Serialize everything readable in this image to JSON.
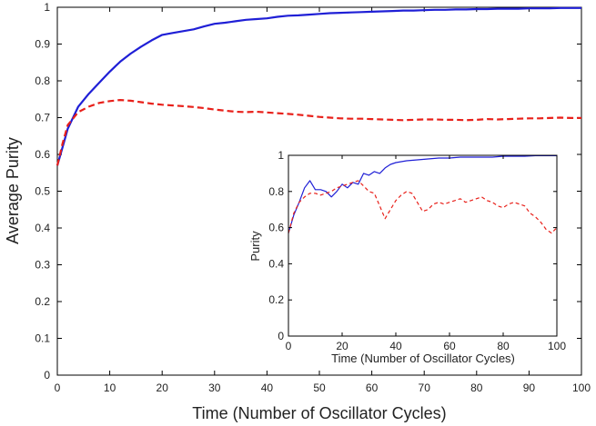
{
  "chart_data": [
    {
      "type": "line",
      "role": "main",
      "title": "",
      "xlabel": "Time (Number of Oscillator Cycles)",
      "ylabel": "Average Purity",
      "xlim": [
        0,
        100
      ],
      "ylim": [
        0,
        1
      ],
      "xticks": [
        0,
        10,
        20,
        30,
        40,
        50,
        60,
        70,
        80,
        90,
        100
      ],
      "yticks": [
        0,
        0.1,
        0.2,
        0.3,
        0.4,
        0.5,
        0.6,
        0.7,
        0.8,
        0.9,
        1
      ],
      "grid": false,
      "legend": "none",
      "series": [
        {
          "name": "solid blue",
          "color": "#1f1fd6",
          "style": "solid",
          "x": [
            0,
            1,
            2,
            4,
            6,
            8,
            10,
            12,
            14,
            16,
            18,
            20,
            22,
            24,
            26,
            28,
            30,
            32,
            34,
            36,
            38,
            40,
            42,
            44,
            46,
            48,
            50,
            52,
            54,
            56,
            58,
            60,
            62,
            64,
            66,
            68,
            70,
            72,
            74,
            76,
            78,
            80,
            82,
            84,
            86,
            88,
            90,
            92,
            94,
            96,
            98,
            100
          ],
          "values": [
            0.57,
            0.62,
            0.67,
            0.73,
            0.765,
            0.795,
            0.825,
            0.852,
            0.874,
            0.893,
            0.91,
            0.925,
            0.93,
            0.935,
            0.94,
            0.948,
            0.955,
            0.958,
            0.962,
            0.966,
            0.968,
            0.97,
            0.974,
            0.977,
            0.978,
            0.98,
            0.982,
            0.984,
            0.985,
            0.986,
            0.987,
            0.988,
            0.989,
            0.99,
            0.991,
            0.991,
            0.992,
            0.993,
            0.993,
            0.994,
            0.994,
            0.995,
            0.995,
            0.996,
            0.996,
            0.996,
            0.997,
            0.997,
            0.997,
            0.998,
            0.998,
            0.998
          ]
        },
        {
          "name": "dashed red",
          "color": "#e8201a",
          "style": "dashed",
          "x": [
            0,
            1,
            2,
            4,
            6,
            8,
            10,
            12,
            14,
            16,
            18,
            20,
            22,
            24,
            26,
            28,
            30,
            32,
            34,
            36,
            38,
            40,
            42,
            44,
            46,
            48,
            50,
            52,
            54,
            56,
            58,
            60,
            62,
            64,
            66,
            68,
            70,
            72,
            74,
            76,
            78,
            80,
            82,
            84,
            86,
            88,
            90,
            92,
            94,
            96,
            98,
            100
          ],
          "values": [
            0.57,
            0.63,
            0.68,
            0.715,
            0.73,
            0.74,
            0.745,
            0.748,
            0.746,
            0.742,
            0.738,
            0.735,
            0.733,
            0.731,
            0.729,
            0.726,
            0.722,
            0.719,
            0.716,
            0.715,
            0.716,
            0.714,
            0.712,
            0.71,
            0.708,
            0.705,
            0.702,
            0.7,
            0.698,
            0.697,
            0.697,
            0.696,
            0.695,
            0.694,
            0.693,
            0.694,
            0.695,
            0.695,
            0.694,
            0.694,
            0.693,
            0.694,
            0.696,
            0.695,
            0.696,
            0.697,
            0.698,
            0.698,
            0.699,
            0.7,
            0.699,
            0.699
          ]
        }
      ]
    },
    {
      "type": "line",
      "role": "inset",
      "title": "",
      "xlabel": "Time (Number of Oscillator Cycles)",
      "ylabel": "Purity",
      "xlim": [
        0,
        100
      ],
      "ylim": [
        0,
        1
      ],
      "xticks": [
        0,
        20,
        40,
        60,
        80,
        100
      ],
      "yticks": [
        0,
        0.2,
        0.4,
        0.6,
        0.8,
        1
      ],
      "grid": false,
      "legend": "none",
      "series": [
        {
          "name": "solid blue",
          "color": "#1f1fd6",
          "style": "solid",
          "x": [
            0,
            2,
            4,
            6,
            8,
            10,
            12,
            14,
            16,
            18,
            20,
            22,
            24,
            26,
            28,
            30,
            32,
            34,
            36,
            38,
            40,
            44,
            48,
            52,
            56,
            60,
            64,
            68,
            72,
            76,
            80,
            84,
            88,
            92,
            96,
            100
          ],
          "values": [
            0.57,
            0.67,
            0.74,
            0.82,
            0.86,
            0.81,
            0.81,
            0.8,
            0.77,
            0.8,
            0.84,
            0.82,
            0.85,
            0.84,
            0.9,
            0.89,
            0.91,
            0.9,
            0.93,
            0.95,
            0.96,
            0.97,
            0.975,
            0.98,
            0.985,
            0.985,
            0.99,
            0.99,
            0.99,
            0.99,
            0.995,
            0.995,
            0.995,
            0.998,
            0.998,
            0.998
          ]
        },
        {
          "name": "dashed red",
          "color": "#e8201a",
          "style": "dashed",
          "x": [
            0,
            2,
            4,
            6,
            8,
            10,
            12,
            14,
            16,
            18,
            20,
            22,
            24,
            26,
            28,
            30,
            32,
            34,
            36,
            38,
            40,
            42,
            44,
            46,
            48,
            50,
            52,
            54,
            56,
            58,
            60,
            62,
            64,
            66,
            68,
            70,
            72,
            74,
            76,
            78,
            80,
            82,
            84,
            86,
            88,
            90,
            92,
            94,
            96,
            98,
            100
          ],
          "values": [
            0.57,
            0.68,
            0.74,
            0.77,
            0.79,
            0.79,
            0.78,
            0.79,
            0.8,
            0.82,
            0.83,
            0.84,
            0.85,
            0.86,
            0.83,
            0.8,
            0.79,
            0.72,
            0.65,
            0.7,
            0.75,
            0.78,
            0.8,
            0.79,
            0.74,
            0.69,
            0.7,
            0.73,
            0.74,
            0.73,
            0.74,
            0.75,
            0.76,
            0.74,
            0.75,
            0.76,
            0.77,
            0.75,
            0.74,
            0.72,
            0.71,
            0.73,
            0.74,
            0.73,
            0.72,
            0.68,
            0.66,
            0.63,
            0.59,
            0.57,
            0.6
          ]
        }
      ]
    }
  ]
}
